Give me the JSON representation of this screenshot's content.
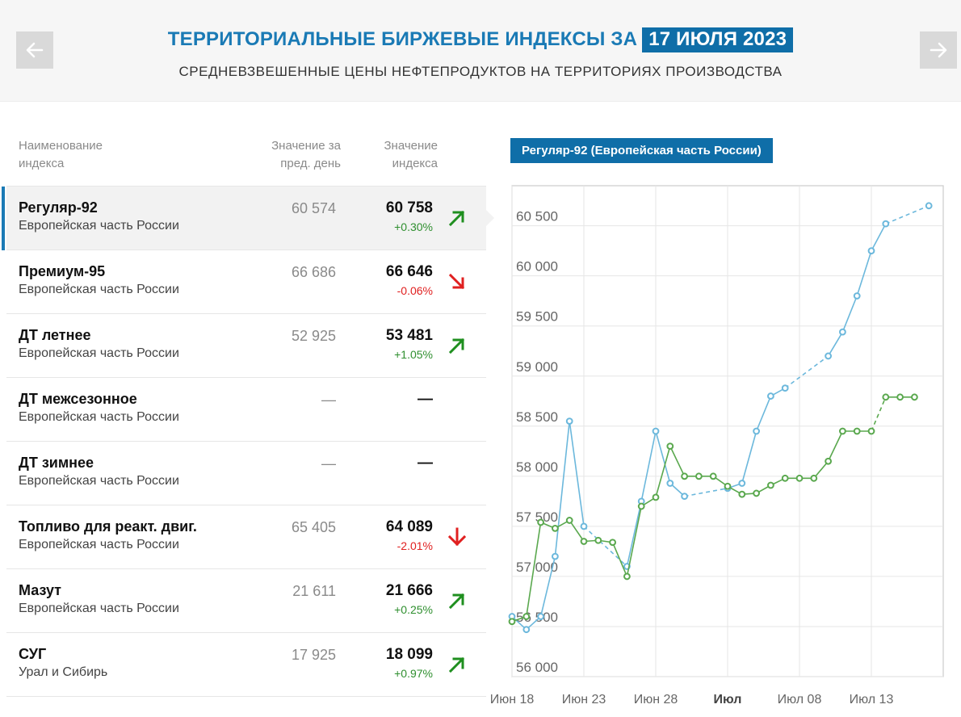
{
  "header": {
    "title": "ТЕРРИТОРИАЛЬНЫЕ БИРЖЕВЫЕ ИНДЕКСЫ ЗА",
    "date": "17 ИЮЛЯ 2023",
    "subtitle": "СРЕДНЕВЗВЕШЕННЫЕ ЦЕНЫ НЕФТЕПРОДУКТОВ НА ТЕРРИТОРИЯХ ПРОИЗВОДСТВА",
    "prev_icon": "arrow-left-icon",
    "next_icon": "arrow-right-icon"
  },
  "table": {
    "columns": {
      "name": [
        "Наименование",
        "индекса"
      ],
      "prev": [
        "Значение за",
        "пред. день"
      ],
      "current": [
        "Значение",
        "индекса"
      ]
    },
    "rows": [
      {
        "name": "Регуляр-92",
        "region": "Европейская часть России",
        "prev": "60 574",
        "current": "60 758",
        "change": "+0.30%",
        "trend": "up",
        "active": true
      },
      {
        "name": "Премиум-95",
        "region": "Европейская часть России",
        "prev": "66 686",
        "current": "66 646",
        "change": "-0.06%",
        "trend": "down-slight"
      },
      {
        "name": "ДТ летнее",
        "region": "Европейская часть России",
        "prev": "52 925",
        "current": "53 481",
        "change": "+1.05%",
        "trend": "up"
      },
      {
        "name": "ДТ межсезонное",
        "region": "Европейская часть России",
        "prev": "—",
        "current": "—",
        "change": "",
        "trend": "none"
      },
      {
        "name": "ДТ зимнее",
        "region": "Европейская часть России",
        "prev": "—",
        "current": "—",
        "change": "",
        "trend": "none"
      },
      {
        "name": "Топливо для реакт. двиг.",
        "region": "Европейская часть России",
        "prev": "65 405",
        "current": "64 089",
        "change": "-2.01%",
        "trend": "down"
      },
      {
        "name": "Мазут",
        "region": "Европейская часть России",
        "prev": "21 611",
        "current": "21 666",
        "change": "+0.25%",
        "trend": "up"
      },
      {
        "name": "СУГ",
        "region": "Урал и Сибирь",
        "prev": "17 925",
        "current": "18 099",
        "change": "+0.97%",
        "trend": "up"
      }
    ],
    "colors": {
      "up": "#1f8f1f",
      "down": "#e02020"
    }
  },
  "chart_data": {
    "type": "line",
    "title": "Регуляр-92 (Европейская часть России)",
    "ylim": [
      56000,
      60900
    ],
    "yticks": [
      56000,
      56500,
      57000,
      57500,
      58000,
      58500,
      59000,
      59500,
      60000,
      60500
    ],
    "ytick_labels": [
      "56 000",
      "56 500",
      "57 000",
      "57 500",
      "58 000",
      "58 500",
      "59 000",
      "59 500",
      "60 000",
      "60 500"
    ],
    "x_range": [
      "2023-06-18",
      "2023-07-18"
    ],
    "x_ticks": [
      {
        "date": "2023-06-18",
        "label": "Июн 18",
        "bold": false
      },
      {
        "date": "2023-06-23",
        "label": "Июн 23",
        "bold": false
      },
      {
        "date": "2023-06-28",
        "label": "Июн 28",
        "bold": false
      },
      {
        "date": "2023-07-03",
        "label": "Июл",
        "bold": true
      },
      {
        "date": "2023-07-08",
        "label": "Июл 08",
        "bold": false
      },
      {
        "date": "2023-07-13",
        "label": "Июл 13",
        "bold": false
      }
    ],
    "grid": true,
    "series": [
      {
        "color": "#6cb8dc",
        "points": [
          [
            "2023-06-18",
            56600
          ],
          [
            "2023-06-19",
            56470
          ],
          [
            "2023-06-20",
            56600
          ],
          [
            "2023-06-21",
            57200
          ],
          [
            "2023-06-22",
            58550
          ],
          [
            "2023-06-23",
            57500
          ],
          [
            "2023-06-26",
            57100
          ],
          [
            "2023-06-27",
            57750
          ],
          [
            "2023-06-28",
            58450
          ],
          [
            "2023-06-29",
            57930
          ],
          [
            "2023-06-30",
            57800
          ],
          [
            "2023-07-03",
            57880
          ],
          [
            "2023-07-04",
            57930
          ],
          [
            "2023-07-05",
            58450
          ],
          [
            "2023-07-06",
            58800
          ],
          [
            "2023-07-07",
            58880
          ],
          [
            "2023-07-10",
            59200
          ],
          [
            "2023-07-11",
            59440
          ],
          [
            "2023-07-12",
            59800
          ],
          [
            "2023-07-13",
            60250
          ],
          [
            "2023-07-14",
            60520
          ],
          [
            "2023-07-17",
            60700
          ]
        ],
        "dashed_segments": [
          [
            5,
            6
          ],
          [
            10,
            11
          ],
          [
            15,
            16
          ],
          [
            20,
            21
          ]
        ]
      },
      {
        "color": "#5aa84e",
        "points": [
          [
            "2023-06-18",
            56550
          ],
          [
            "2023-06-19",
            56600
          ],
          [
            "2023-06-20",
            57540
          ],
          [
            "2023-06-21",
            57480
          ],
          [
            "2023-06-22",
            57560
          ],
          [
            "2023-06-23",
            57350
          ],
          [
            "2023-06-24",
            57360
          ],
          [
            "2023-06-25",
            57340
          ],
          [
            "2023-06-26",
            57000
          ],
          [
            "2023-06-27",
            57700
          ],
          [
            "2023-06-28",
            57790
          ],
          [
            "2023-06-29",
            58300
          ],
          [
            "2023-06-30",
            58000
          ],
          [
            "2023-07-01",
            58000
          ],
          [
            "2023-07-02",
            58000
          ],
          [
            "2023-07-03",
            57900
          ],
          [
            "2023-07-04",
            57820
          ],
          [
            "2023-07-05",
            57830
          ],
          [
            "2023-07-06",
            57910
          ],
          [
            "2023-07-07",
            57980
          ],
          [
            "2023-07-08",
            57980
          ],
          [
            "2023-07-09",
            57980
          ],
          [
            "2023-07-10",
            58150
          ],
          [
            "2023-07-11",
            58450
          ],
          [
            "2023-07-12",
            58450
          ],
          [
            "2023-07-13",
            58450
          ],
          [
            "2023-07-14",
            58790
          ],
          [
            "2023-07-15",
            58790
          ],
          [
            "2023-07-16",
            58790
          ]
        ],
        "dashed_segments": [
          [
            25,
            26
          ]
        ]
      }
    ]
  }
}
